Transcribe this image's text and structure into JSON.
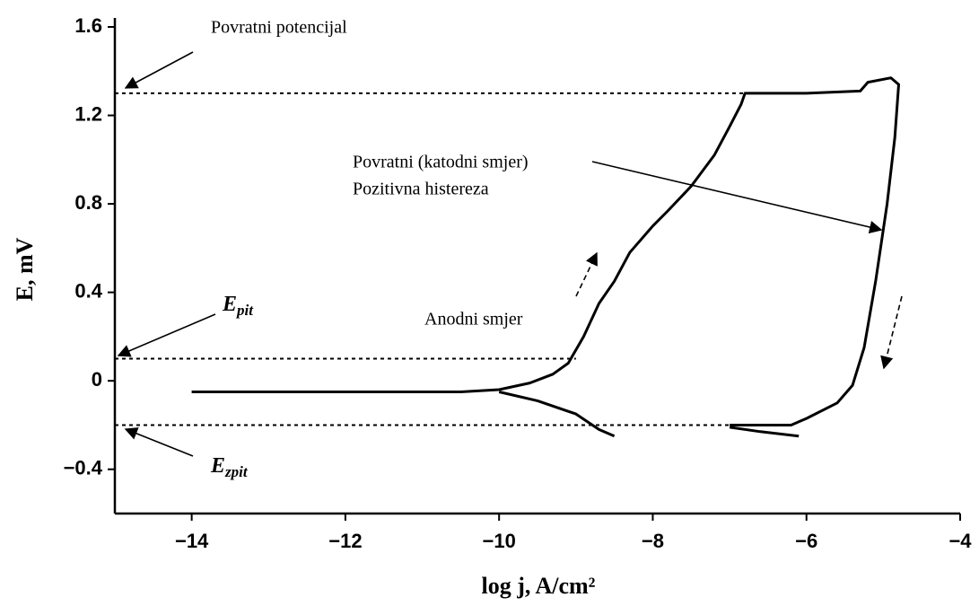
{
  "chart_data": {
    "type": "line",
    "xlabel": "log j, A/cm²",
    "ylabel": "E, mV",
    "xlim": [
      -15,
      -4
    ],
    "ylim": [
      -0.6,
      1.6
    ],
    "xticks": [
      {
        "value": -14,
        "label": "−14"
      },
      {
        "value": -12,
        "label": "−12"
      },
      {
        "value": -10,
        "label": "−10"
      },
      {
        "value": -8,
        "label": "−8"
      },
      {
        "value": -6,
        "label": "−6"
      },
      {
        "value": -4,
        "label": "−4"
      }
    ],
    "yticks": [
      {
        "value": -0.4,
        "label": "−0.4"
      },
      0,
      0.4,
      0.8,
      1.2,
      1.6
    ],
    "series": [
      {
        "color": "#000000",
        "x": [
          -14,
          -12,
          -10.5,
          -10,
          -9.6,
          -9.3,
          -9.1,
          -8.9,
          -8.7,
          -8.5,
          -8.3,
          -8.0,
          -7.8,
          -7.5,
          -7.2,
          -7.0,
          -6.85,
          -6.8,
          -6.0,
          -5.3,
          -5.2,
          -4.9,
          -4.8,
          -4.85,
          -4.95,
          -5.1,
          -5.25,
          -5.4,
          -5.6,
          -6.0,
          -6.2,
          -7.0
        ],
        "y": [
          -0.05,
          -0.05,
          -0.05,
          -0.04,
          -0.01,
          0.03,
          0.08,
          0.2,
          0.35,
          0.45,
          0.58,
          0.7,
          0.77,
          0.88,
          1.02,
          1.15,
          1.25,
          1.3,
          1.3,
          1.31,
          1.35,
          1.37,
          1.34,
          1.1,
          0.8,
          0.45,
          0.15,
          -0.02,
          -0.1,
          -0.17,
          -0.2,
          -0.2
        ]
      },
      {
        "color": "#000000",
        "x": [
          -10,
          -9.5,
          -9.0,
          -8.7,
          -8.5
        ],
        "y": [
          -0.05,
          -0.09,
          -0.15,
          -0.22,
          -0.25
        ]
      },
      {
        "color": "#000000",
        "x": [
          -7.0,
          -6.6,
          -6.1
        ],
        "y": [
          -0.21,
          -0.23,
          -0.25
        ]
      }
    ],
    "reference_lines": [
      {
        "y": 1.3,
        "x": [
          -15,
          -6.8
        ]
      },
      {
        "y": 0.1,
        "x": [
          -15,
          -9.0
        ]
      },
      {
        "y": -0.2,
        "x": [
          -15,
          -7.0
        ]
      }
    ],
    "annotations": [
      {
        "text": "Povratni potencijal"
      },
      {
        "text": "Povratni (katodni smjer)"
      },
      {
        "text": "Pozitivna histereza"
      },
      {
        "text": "Anodni smjer"
      },
      {
        "text": "E",
        "subscript": "pit"
      },
      {
        "text": "E",
        "subscript": "zpit"
      }
    ]
  }
}
